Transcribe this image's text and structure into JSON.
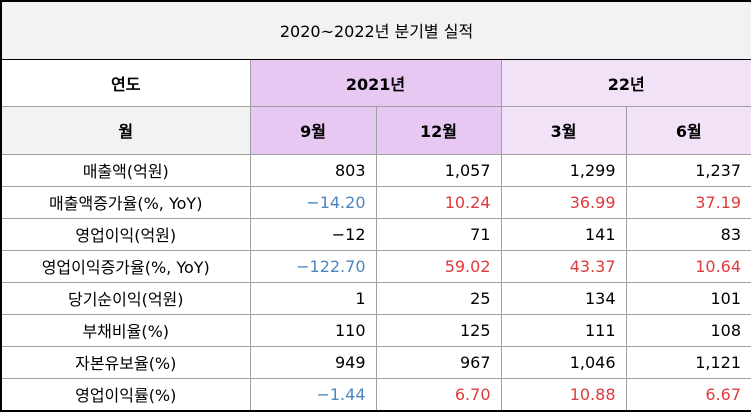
{
  "title": "2020~2022년 분기별 실적",
  "header": {
    "year_label": "연도",
    "years": [
      "2021년",
      "22년"
    ],
    "month_label": "월",
    "months": [
      "9월",
      "12월",
      "3월",
      "6월"
    ]
  },
  "table": {
    "rows": [
      [
        "매출액(억원)",
        "803",
        "1,057",
        "1,299",
        "1,237"
      ],
      [
        "매출액증가율(%, YoY)",
        "-14.20",
        "10.24",
        "36.99",
        "37.19"
      ],
      [
        "영업이익(억원)",
        "-12",
        "71",
        "141",
        "83"
      ],
      [
        "영업이익증가율(%, YoY)",
        "-122.70",
        "59.02",
        "43.37",
        "10.64"
      ],
      [
        "당기순이익(억원)",
        "1",
        "25",
        "134",
        "101"
      ],
      [
        "부채비율(%)",
        "110",
        "125",
        "111",
        "108"
      ],
      [
        "자본유보율(%)",
        "949",
        "967",
        "1,046",
        "1,121"
      ],
      [
        "영업이익률(%)",
        "-1.44",
        "6.70",
        "10.88",
        "6.67"
      ]
    ]
  }
}
